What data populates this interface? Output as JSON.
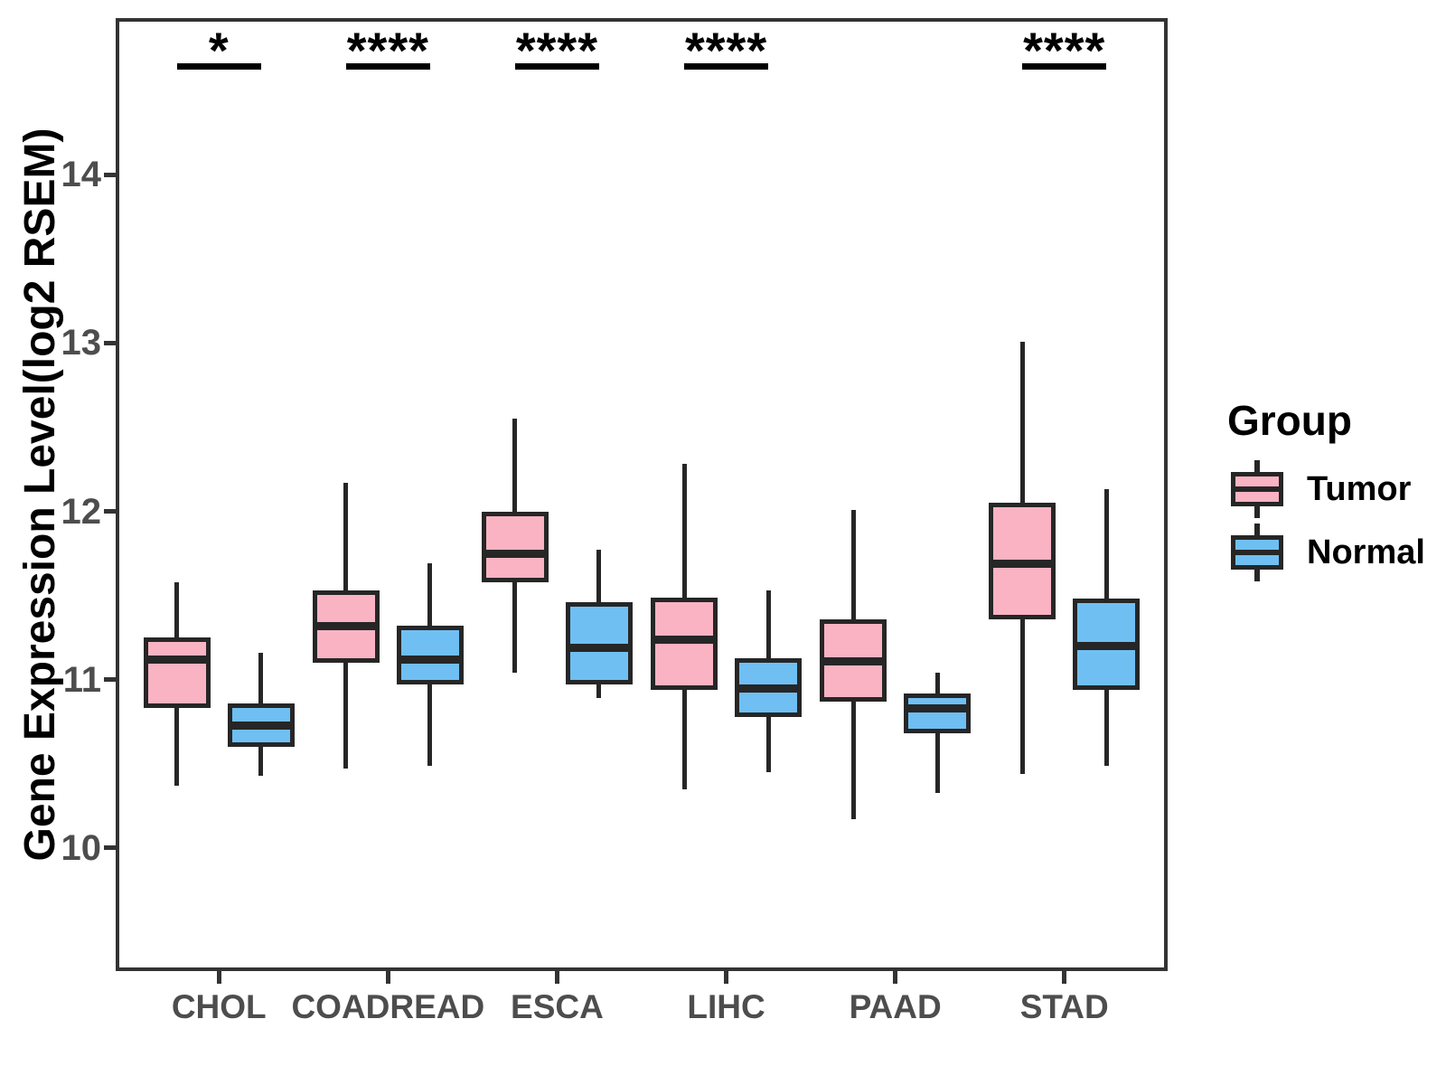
{
  "chart_data": {
    "type": "boxplot",
    "ylabel": "Gene Expression Level(log2 RSEM)",
    "xlabel": "",
    "legend_title": "Group",
    "legend_position": "right",
    "categories": [
      "CHOL",
      "COADREAD",
      "ESCA",
      "LIHC",
      "PAAD",
      "STAD"
    ],
    "yticks": [
      10,
      11,
      12,
      13,
      14
    ],
    "ylim": [
      9.28,
      14.92
    ],
    "grid": false,
    "significance": [
      "*",
      "****",
      "****",
      "****",
      "",
      "****"
    ],
    "series": [
      {
        "name": "Tumor",
        "color": "#F9B3C3",
        "boxes": [
          {
            "low": 10.37,
            "q1": 10.83,
            "median": 11.12,
            "q3": 11.25,
            "high": 11.58
          },
          {
            "low": 10.47,
            "q1": 11.1,
            "median": 11.32,
            "q3": 11.53,
            "high": 12.17
          },
          {
            "low": 11.04,
            "q1": 11.58,
            "median": 11.75,
            "q3": 12.0,
            "high": 12.55
          },
          {
            "low": 10.35,
            "q1": 10.94,
            "median": 11.24,
            "q3": 11.49,
            "high": 12.28
          },
          {
            "low": 10.17,
            "q1": 10.87,
            "median": 11.11,
            "q3": 11.36,
            "high": 12.01
          },
          {
            "low": 10.44,
            "q1": 11.36,
            "median": 11.69,
            "q3": 12.05,
            "high": 13.01
          }
        ]
      },
      {
        "name": "Normal",
        "color": "#6FBFF3",
        "boxes": [
          {
            "low": 10.43,
            "q1": 10.6,
            "median": 10.73,
            "q3": 10.86,
            "high": 11.16
          },
          {
            "low": 10.49,
            "q1": 10.97,
            "median": 11.12,
            "q3": 11.32,
            "high": 11.69
          },
          {
            "low": 10.89,
            "q1": 10.97,
            "median": 11.19,
            "q3": 11.46,
            "high": 11.77
          },
          {
            "low": 10.45,
            "q1": 10.78,
            "median": 10.95,
            "q3": 11.13,
            "high": 11.53
          },
          {
            "low": 10.33,
            "q1": 10.68,
            "median": 10.83,
            "q3": 10.92,
            "high": 11.04
          },
          {
            "low": 10.49,
            "q1": 10.94,
            "median": 11.2,
            "q3": 11.48,
            "high": 12.13
          }
        ]
      }
    ],
    "colors": {
      "box_border": "#262626",
      "axis_line": "#333333",
      "axis_text": "#4d4d4d",
      "tumor_fill": "#F9B3C3",
      "normal_fill": "#6FBFF3"
    }
  }
}
